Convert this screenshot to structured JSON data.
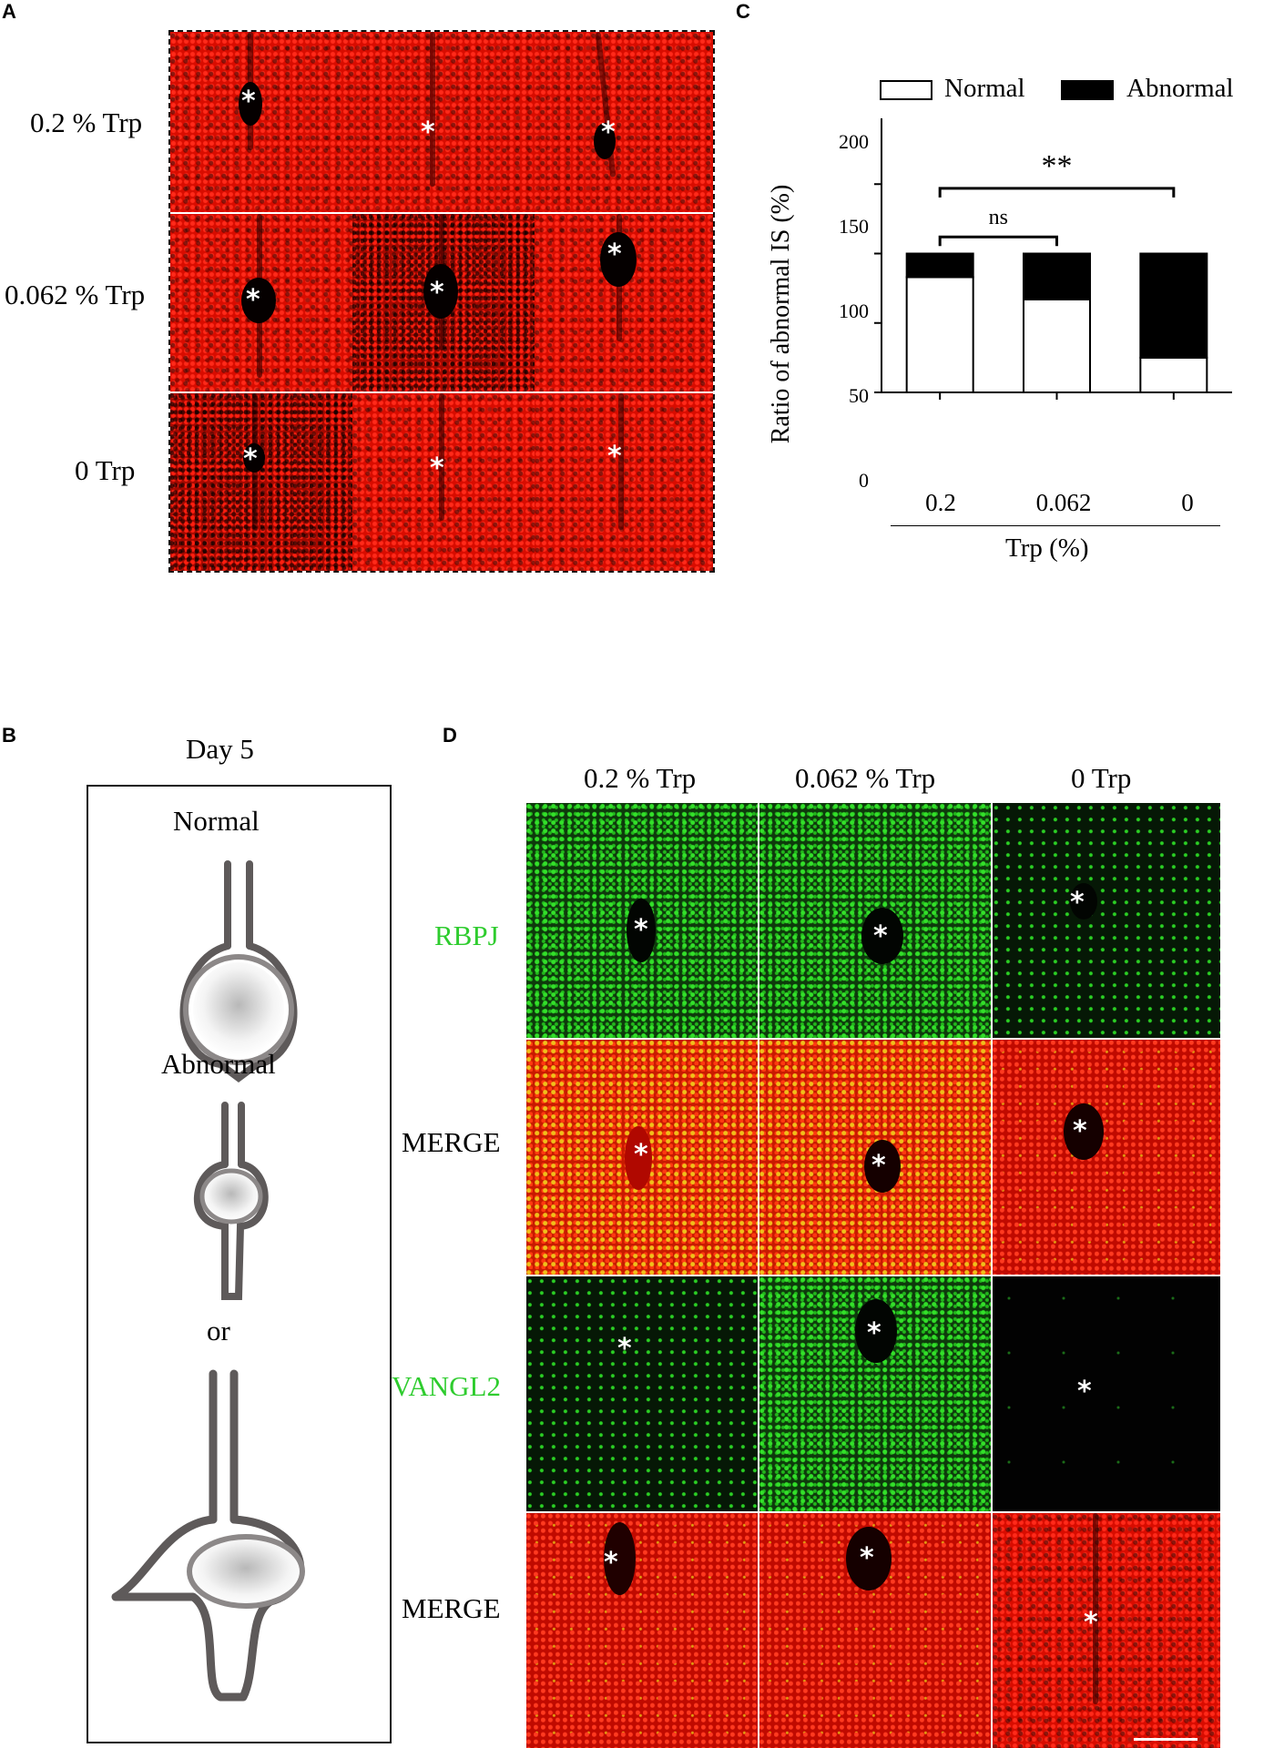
{
  "panels": {
    "a": {
      "letter": "A",
      "rows": [
        "0.2 % Trp",
        "0.062 % Trp",
        "0 Trp"
      ]
    },
    "b": {
      "letter": "B",
      "title": "Day 5",
      "normal_label": "Normal",
      "abnormal_label": "Abnormal",
      "or_label": "or"
    },
    "c": {
      "letter": "C"
    },
    "d": {
      "letter": "D",
      "columns": [
        "0.2 % Trp",
        "0.062 % Trp",
        "0 Trp"
      ],
      "rows": [
        "RBPJ",
        "MERGE",
        "VANGL2",
        "MERGE"
      ]
    }
  },
  "asterisk_glyph": "*",
  "colors": {
    "tissue_red": "#d80c00",
    "marker_green": "#2ecc2e",
    "merge_yellow": "#f0c01a"
  },
  "chart_data": {
    "type": "bar",
    "stacked": true,
    "categories": [
      "0.2",
      "0.062",
      "0"
    ],
    "series": [
      {
        "name": "Normal",
        "color": "#ffffff",
        "values": [
          83,
          67,
          25
        ]
      },
      {
        "name": "Abnormal",
        "color": "#000000",
        "values": [
          17,
          33,
          75
        ]
      }
    ],
    "xlabel": "Trp (%)",
    "ylabel": "Ratio of abnormal IS (%)",
    "ylim": [
      0,
      200
    ],
    "yticks": [
      0,
      50,
      100,
      150,
      200
    ],
    "legend_position": "top",
    "annotations": [
      {
        "text": "ns",
        "from": "0.2",
        "to": "0.062",
        "height": 112
      },
      {
        "text": "**",
        "from": "0.2",
        "to": "0",
        "height": 147
      }
    ]
  }
}
